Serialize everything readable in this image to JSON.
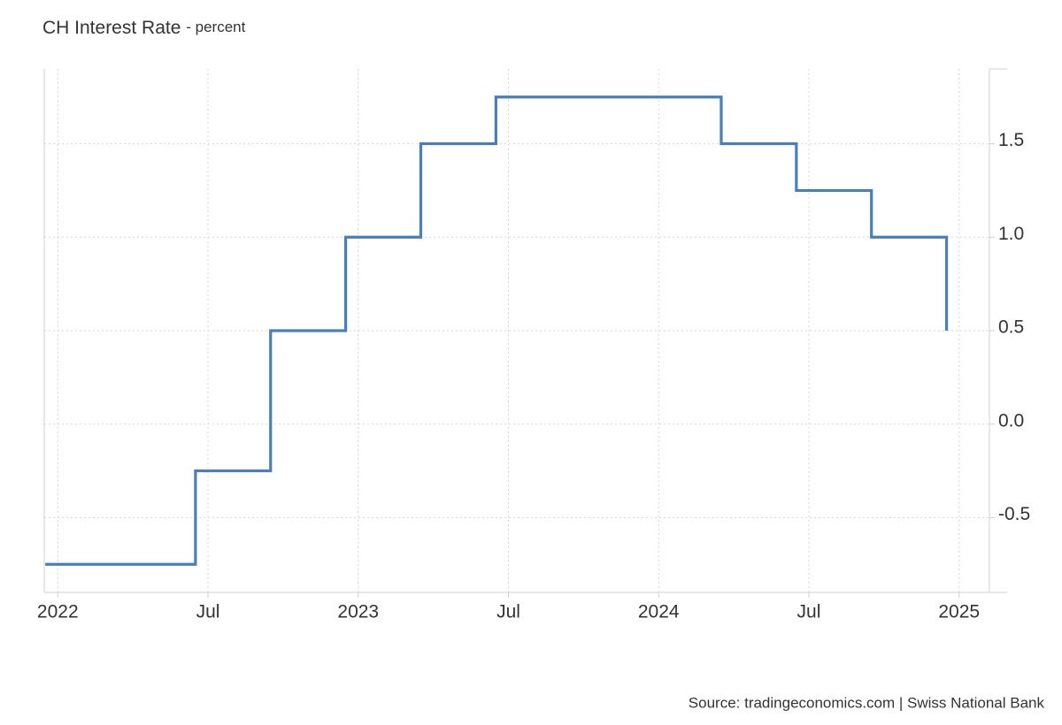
{
  "chart_data": {
    "type": "line",
    "step": true,
    "title": "CH Interest Rate",
    "subtitle": "- percent",
    "source": "Source: tradingeconomics.com | Swiss National Bank",
    "x": [
      "2021-12",
      "2022-06",
      "2022-09",
      "2022-12",
      "2023-03",
      "2023-06",
      "2024-03",
      "2024-06",
      "2024-09",
      "2024-12"
    ],
    "series": [
      {
        "name": "CH Interest Rate",
        "color": "#4a7eb8",
        "values": [
          -0.75,
          -0.25,
          0.5,
          1.0,
          1.5,
          1.75,
          1.5,
          1.25,
          1.0,
          0.5
        ]
      }
    ],
    "xlim": [
      "2021-12",
      "2025-02"
    ],
    "xticks": [
      {
        "value": "2022-01",
        "label": "2022"
      },
      {
        "value": "2022-07",
        "label": "Jul"
      },
      {
        "value": "2023-01",
        "label": "2023"
      },
      {
        "value": "2023-07",
        "label": "Jul"
      },
      {
        "value": "2024-01",
        "label": "2024"
      },
      {
        "value": "2024-07",
        "label": "Jul"
      },
      {
        "value": "2025-01",
        "label": "2025"
      }
    ],
    "ylim": [
      -0.9,
      1.9
    ],
    "yticks": [
      -0.5,
      {
        "value": 0,
        "label": "0.0"
      },
      0.5,
      {
        "value": 1,
        "label": "1.0"
      },
      1.5
    ],
    "grid": true
  }
}
